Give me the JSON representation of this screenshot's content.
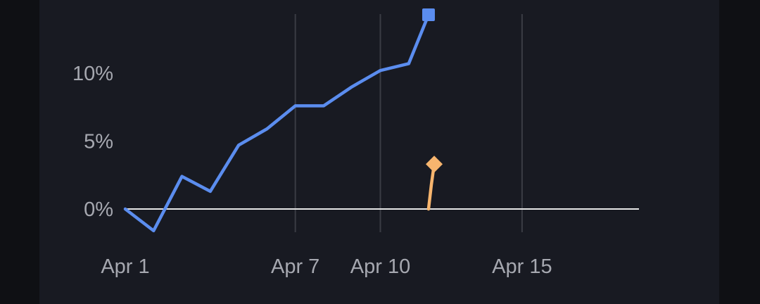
{
  "chart_data": {
    "type": "line",
    "title": "",
    "xlabel": "",
    "ylabel": "",
    "x_tick_labels": [
      "Apr 1",
      "Apr 7",
      "Apr 10",
      "Apr 15"
    ],
    "y_tick_labels": [
      "0%",
      "5%",
      "10%"
    ],
    "y_ticks": [
      0,
      5,
      10
    ],
    "x_ticks_day": [
      1,
      7,
      10,
      15
    ],
    "xlim_day": [
      1,
      19
    ],
    "ylim": [
      -1.8,
      14.5
    ],
    "grid": "vertical",
    "zero_line": true,
    "series": [
      {
        "marker": "square",
        "color": "#5b8def",
        "points": [
          {
            "day": 1,
            "value": 0
          },
          {
            "day": 2,
            "value": -1.6
          },
          {
            "day": 3,
            "value": 2.4
          },
          {
            "day": 4,
            "value": 1.3
          },
          {
            "day": 5,
            "value": 4.7
          },
          {
            "day": 6,
            "value": 5.9
          },
          {
            "day": 7,
            "value": 7.6
          },
          {
            "day": 8,
            "value": 7.6
          },
          {
            "day": 9,
            "value": 9.0
          },
          {
            "day": 10,
            "value": 10.2
          },
          {
            "day": 11,
            "value": 10.7
          },
          {
            "day": 11.7,
            "value": 14.3
          }
        ]
      },
      {
        "marker": "diamond",
        "color": "#f7b56e",
        "points": [
          {
            "day": 11.7,
            "value": 0
          },
          {
            "day": 11.8,
            "value": 1.8
          },
          {
            "day": 11.9,
            "value": 3.3
          }
        ]
      }
    ]
  },
  "colors": {
    "background": "#0f1014",
    "card": "#181a22",
    "gridline": "#3a3c44",
    "zero_line": "#e6e6e6",
    "tick_label": "#a6a8b0"
  }
}
